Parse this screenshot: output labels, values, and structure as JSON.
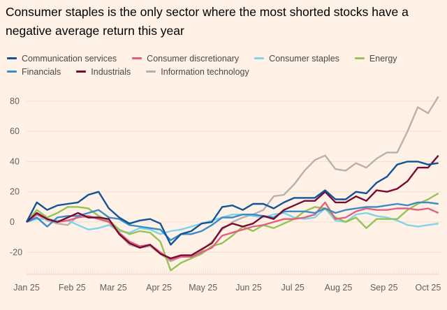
{
  "title": "Consumer staples is the only sector where the most shorted stocks have a negative average return this year",
  "chart_data": {
    "type": "line",
    "title": "Consumer staples is the only sector where the most shorted stocks have a negative average return this year",
    "xlabel": "",
    "ylabel": "",
    "ylim": [
      -35,
      90
    ],
    "yticks": [
      -20,
      0,
      20,
      40,
      60,
      80
    ],
    "xtick_labels": [
      "Jan 25",
      "Feb 25",
      "Mar 25",
      "Apr 25",
      "May 25",
      "Jun 25",
      "Jul 25",
      "Aug 25",
      "Sep 25",
      "Oct 25"
    ],
    "xtick_dates": [
      "2025-01-01",
      "2025-02-01",
      "2025-03-01",
      "2025-04-01",
      "2025-05-01",
      "2025-06-01",
      "2025-07-01",
      "2025-08-01",
      "2025-09-01",
      "2025-10-01"
    ],
    "grid": true,
    "legend_position": "top",
    "x": [
      "2025-01-01",
      "2025-01-08",
      "2025-01-15",
      "2025-01-22",
      "2025-01-29",
      "2025-02-05",
      "2025-02-12",
      "2025-02-19",
      "2025-02-26",
      "2025-03-05",
      "2025-03-12",
      "2025-03-19",
      "2025-03-26",
      "2025-04-02",
      "2025-04-09",
      "2025-04-16",
      "2025-04-23",
      "2025-04-30",
      "2025-05-07",
      "2025-05-14",
      "2025-05-21",
      "2025-05-28",
      "2025-06-04",
      "2025-06-11",
      "2025-06-18",
      "2025-06-25",
      "2025-07-02",
      "2025-07-09",
      "2025-07-16",
      "2025-07-23",
      "2025-07-30",
      "2025-08-06",
      "2025-08-13",
      "2025-08-20",
      "2025-08-27",
      "2025-09-03",
      "2025-09-10",
      "2025-09-17",
      "2025-09-24",
      "2025-10-01",
      "2025-10-08"
    ],
    "series": [
      {
        "name": "Information technology",
        "color": "#B8B1AB",
        "values": [
          0,
          5,
          1,
          -1,
          -2,
          4,
          3,
          3,
          1,
          -8,
          -15,
          -17,
          -16,
          -21,
          -26,
          -23,
          -23,
          -19,
          -13,
          -5,
          0,
          3,
          5,
          8,
          17,
          18,
          25,
          34,
          41,
          44,
          35,
          34,
          39,
          36,
          42,
          46,
          46,
          60,
          76,
          72,
          83
        ]
      },
      {
        "name": "Consumer staples",
        "color": "#80D4EA",
        "values": [
          0,
          2,
          2,
          1,
          1,
          -2,
          -5,
          -4,
          -2,
          -6,
          -7,
          -4,
          -5,
          -8,
          -6,
          -5,
          -3,
          -1,
          1,
          3,
          5,
          5,
          4,
          3,
          5,
          6,
          3,
          2,
          3,
          9,
          1,
          0,
          5,
          6,
          4,
          3,
          1,
          -2,
          -3,
          -2,
          -1
        ]
      },
      {
        "name": "Energy",
        "color": "#96C257",
        "values": [
          0,
          8,
          3,
          6,
          10,
          10,
          9,
          4,
          1,
          -5,
          -8,
          -6,
          -7,
          -13,
          -32,
          -27,
          -24,
          -21,
          -16,
          -14,
          -9,
          -3,
          -6,
          -2,
          -4,
          -1,
          2,
          7,
          10,
          9,
          3,
          0,
          3,
          -4,
          2,
          2,
          2,
          8,
          12,
          15,
          19
        ]
      },
      {
        "name": "Consumer discretionary",
        "color": "#E2607F",
        "values": [
          0,
          5,
          2,
          0,
          1,
          3,
          4,
          2,
          0,
          -7,
          -13,
          -16,
          -15,
          -20,
          -25,
          -23,
          -23,
          -20,
          -17,
          -9,
          -7,
          -5,
          -3,
          -2,
          0,
          2,
          2,
          3,
          5,
          13,
          2,
          3,
          7,
          9,
          8,
          8,
          9,
          9,
          8,
          9,
          6
        ]
      },
      {
        "name": "Financials",
        "color": "#3A8CC7",
        "values": [
          0,
          3,
          -3,
          3,
          4,
          4,
          6,
          8,
          3,
          2,
          -2,
          -3,
          -4,
          -5,
          -12,
          -8,
          -8,
          -6,
          -2,
          3,
          3,
          5,
          5,
          4,
          3,
          7,
          7,
          7,
          6,
          9,
          6,
          8,
          9,
          10,
          10,
          11,
          12,
          11,
          13,
          13,
          12
        ]
      },
      {
        "name": "Industrials",
        "color": "#760B34",
        "values": [
          0,
          6,
          2,
          0,
          3,
          6,
          3,
          3,
          2,
          -8,
          -14,
          -17,
          -15,
          -21,
          -24,
          -22,
          -22,
          -18,
          -14,
          -4,
          -1,
          -3,
          -1,
          4,
          2,
          8,
          11,
          14,
          14,
          20,
          13,
          13,
          17,
          14,
          21,
          20,
          22,
          27,
          36,
          36,
          44
        ]
      },
      {
        "name": "Communication services",
        "color": "#0F5499",
        "values": [
          0,
          13,
          8,
          11,
          12,
          13,
          18,
          20,
          9,
          3,
          -1,
          1,
          2,
          -1,
          -15,
          -8,
          -6,
          -1,
          0,
          10,
          11,
          8,
          12,
          12,
          9,
          13,
          16,
          16,
          16,
          21,
          15,
          15,
          20,
          19,
          26,
          30,
          38,
          40,
          40,
          38,
          39
        ]
      }
    ],
    "legend_order": [
      "Communication services",
      "Consumer discretionary",
      "Consumer staples",
      "Energy",
      "Financials",
      "Industrials",
      "Information technology"
    ]
  }
}
